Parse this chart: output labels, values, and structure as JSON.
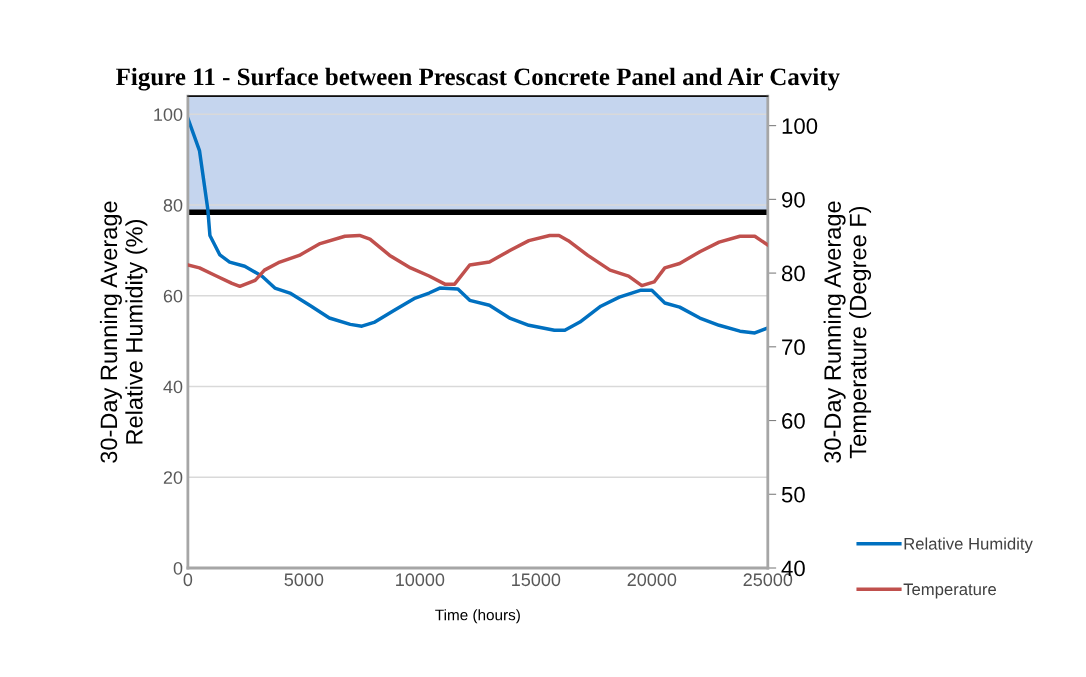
{
  "chart_data": {
    "type": "line",
    "title": "Figure 11 - Surface between Prescast Concrete Panel and Air Cavity",
    "xlabel": "Time (hours)",
    "ylabel": "30-Day Running Average\nRelative Humidity (%)",
    "y2label": "30-Day Running Average\nTemperature (Degree F)",
    "xlim": [
      0,
      25000
    ],
    "xticks": [
      0,
      5000,
      10000,
      15000,
      20000,
      25000
    ],
    "ylim": [
      0,
      104
    ],
    "yticks": [
      0,
      20,
      40,
      60,
      80,
      100
    ],
    "y2lim": [
      40,
      104
    ],
    "y2ticks": [
      40,
      50,
      60,
      70,
      80,
      90,
      100
    ],
    "grid": "y",
    "legend": "right",
    "marker": "none",
    "line_style": "solid",
    "bands": [
      {
        "axis": "y",
        "from": 78.4,
        "to": 104,
        "color": "#c5d5ee"
      }
    ],
    "ref_lines": [
      {
        "axis": "y",
        "value": 78.4,
        "color": "#000000",
        "line_style": "solid"
      }
    ],
    "series": [
      {
        "name": "Relative Humidity",
        "color": "#0070c0",
        "x": [
          0,
          500,
          860,
          950,
          1380,
          1800,
          2450,
          3200,
          3750,
          4400,
          5250,
          6100,
          7000,
          7500,
          8060,
          8900,
          9800,
          10400,
          10860,
          11640,
          12150,
          13000,
          13900,
          14700,
          15800,
          16250,
          16900,
          17800,
          18600,
          19500,
          20000,
          20560,
          21200,
          22070,
          22900,
          23800,
          24440,
          25000
        ],
        "values": [
          99.1,
          92,
          79,
          73.3,
          69,
          67.4,
          66.5,
          64.3,
          61.7,
          60.6,
          57.9,
          55.1,
          53.7,
          53.3,
          54.2,
          56.8,
          59.5,
          60.6,
          61.7,
          61.5,
          59,
          57.9,
          55,
          53.5,
          52.4,
          52.4,
          54.2,
          57.7,
          59.7,
          61.2,
          61.2,
          58.4,
          57.5,
          55.1,
          53.5,
          52.2,
          51.8,
          52.9
        ]
      },
      {
        "name": "Temperature",
        "color": "#c0504d",
        "axis": "y2",
        "x": [
          0,
          500,
          1160,
          1900,
          2240,
          2900,
          3300,
          3960,
          4800,
          5700,
          6770,
          7400,
          7850,
          8700,
          9600,
          10400,
          11080,
          11500,
          12150,
          13000,
          13900,
          14700,
          15600,
          16000,
          16400,
          17240,
          18200,
          19000,
          19570,
          20100,
          20560,
          21200,
          22070,
          22900,
          23800,
          24440,
          25000
        ],
        "values": [
          81.1,
          80.7,
          79.7,
          78.6,
          78.2,
          79,
          80.4,
          81.5,
          82.4,
          84,
          85,
          85.1,
          84.6,
          82.4,
          80.7,
          79.6,
          78.5,
          78.5,
          81.1,
          81.5,
          83.1,
          84.4,
          85.1,
          85.1,
          84.4,
          82.4,
          80.4,
          79.6,
          78.3,
          78.8,
          80.7,
          81.3,
          82.9,
          84.2,
          85,
          85,
          83.8
        ]
      }
    ]
  }
}
